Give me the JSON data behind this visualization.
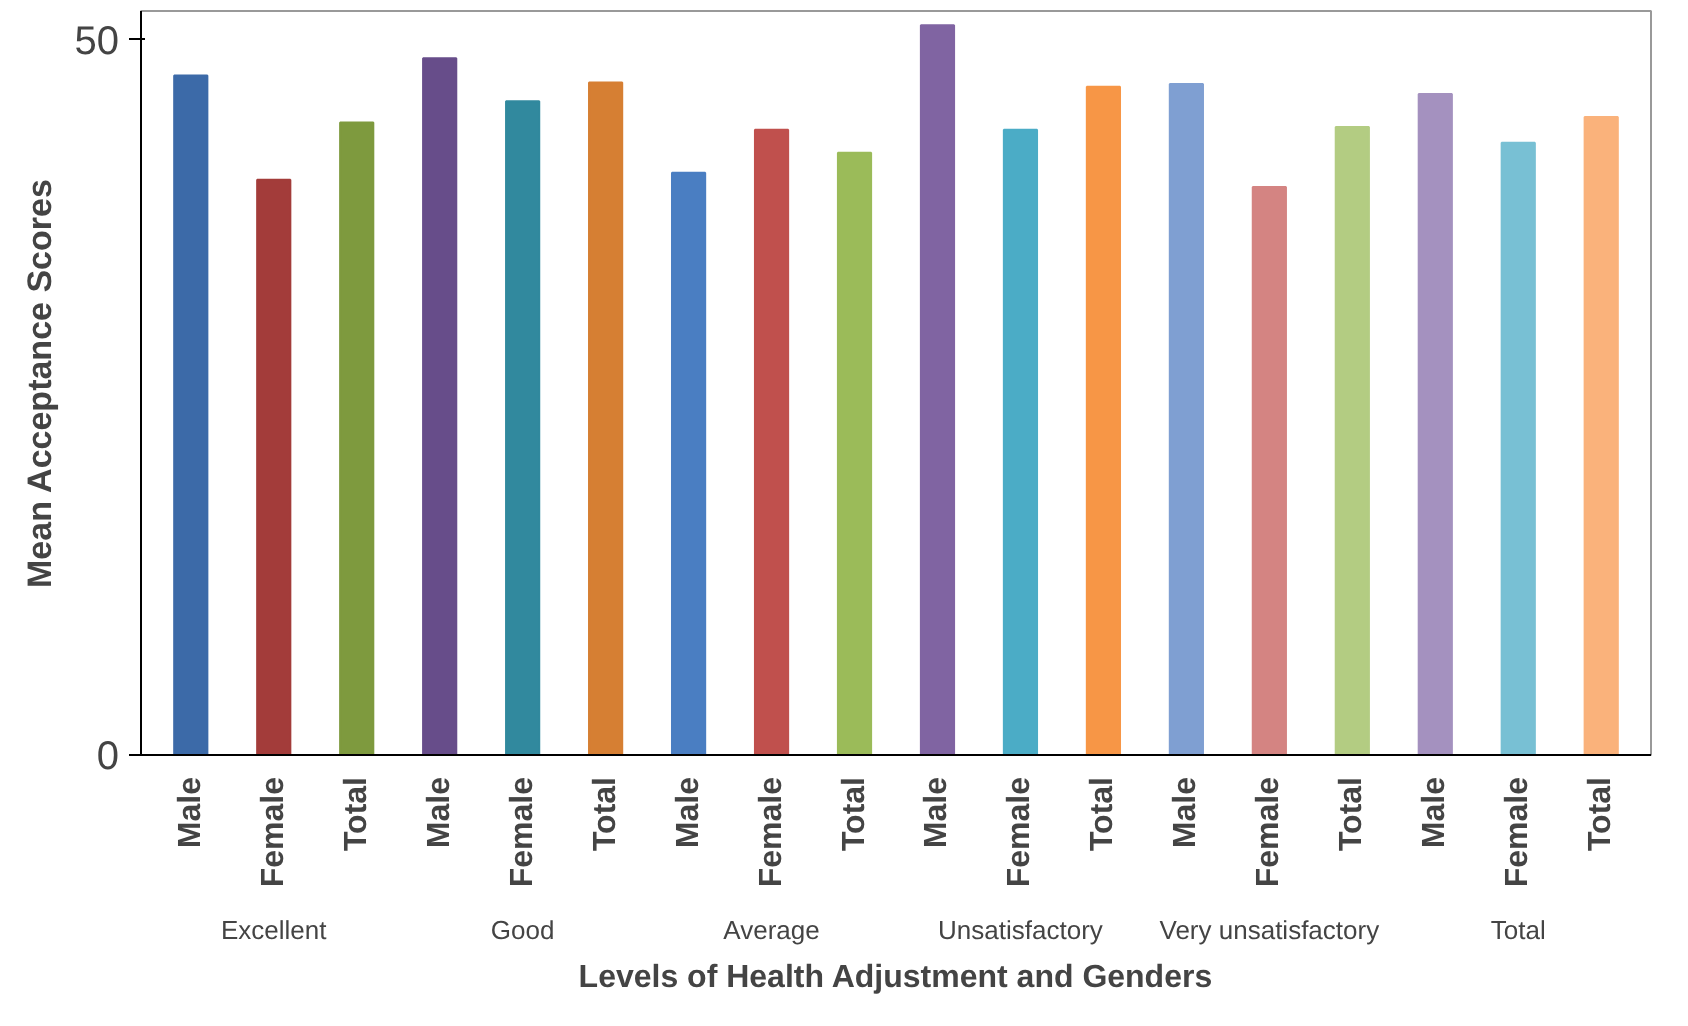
{
  "chart_data": {
    "type": "bar",
    "ylabel": "Mean Acceptance Scores",
    "xlabel": "Levels of Health Adjustment and Genders",
    "categories": [
      "Male",
      "Female",
      "Total",
      "Male",
      "Female",
      "Total",
      "Male",
      "Female",
      "Total",
      "Male",
      "Female",
      "Total",
      "Male",
      "Female",
      "Total",
      "Male",
      "Female",
      "Total"
    ],
    "values": [
      47.5,
      40.2,
      44.2,
      48.7,
      45.7,
      47.0,
      40.7,
      43.7,
      42.1,
      51.0,
      43.7,
      46.7,
      46.9,
      39.7,
      43.9,
      46.2,
      42.8,
      44.6
    ],
    "colors": [
      "#3c6aa8",
      "#a33c3a",
      "#7e9a3e",
      "#674d8a",
      "#31899e",
      "#d67f33",
      "#4a7ec2",
      "#c0504d",
      "#9bbb59",
      "#8064a2",
      "#4bacc6",
      "#f79646",
      "#7f9fd2",
      "#d48482",
      "#b3cc82",
      "#a491bf",
      "#78c0d4",
      "#fab27b"
    ],
    "annotations": [
      "Excellent",
      "Good",
      "Average",
      "Unsatisfactory",
      "Very unsatisfactory",
      "Total"
    ],
    "ylim": [
      0,
      52
    ],
    "yticks": [
      0,
      50
    ],
    "grid": false
  }
}
